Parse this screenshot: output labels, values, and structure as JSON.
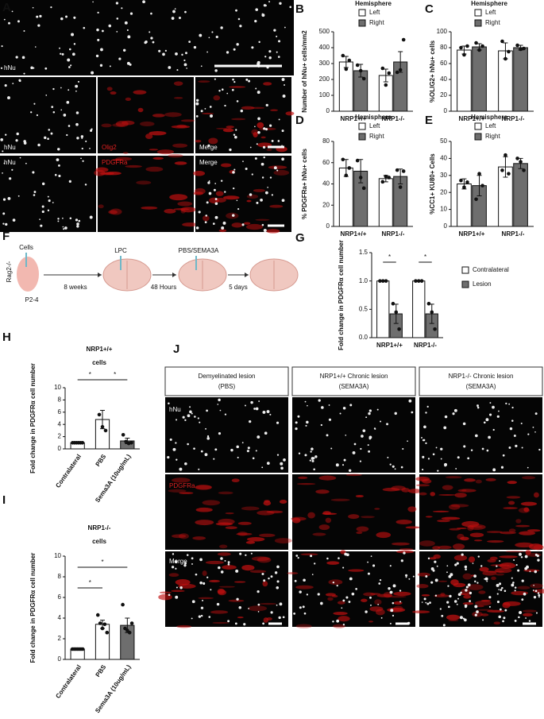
{
  "panel_labels": [
    "A",
    "B",
    "C",
    "D",
    "E",
    "F",
    "G",
    "H",
    "I",
    "J"
  ],
  "panel_a": {
    "labels": [
      "hNu",
      "hNu",
      "Olig2",
      "Merge",
      "hNu",
      "PDGFRa",
      "Merge"
    ]
  },
  "panel_f": {
    "labels": [
      "Cells",
      "Rag2-/-",
      "P2-4",
      "LPC",
      "8 weeks",
      "PBS/SEMA3A",
      "48 Hours",
      "5 days"
    ]
  },
  "panel_j": {
    "headers": [
      [
        "Demyelinated lesion",
        "(PBS)"
      ],
      [
        "NRP1+/+ Chronic lesion",
        "(SEMA3A)"
      ],
      [
        "NRP1-/- Chronic lesion",
        "(SEMA3A)"
      ]
    ],
    "row_labels": [
      "hNu",
      "PDGFRa",
      "Merge"
    ]
  },
  "chart_data": [
    {
      "type": "bar",
      "legend_title": "Hemisphere",
      "ylabel": "Number of hNu+ cells/mm2",
      "categories": [
        "NRP1+/+",
        "NRP1-/-"
      ],
      "series": [
        {
          "name": "Left",
          "color": "#ffffff",
          "values": [
            310,
            225
          ],
          "errors": [
            35,
            40
          ],
          "points": [
            [
              350,
              265,
              320
            ],
            [
              270,
              165,
              240
            ]
          ]
        },
        {
          "name": "Right",
          "color": "#6e6e6e",
          "values": [
            255,
            310
          ],
          "errors": [
            40,
            65
          ],
          "points": [
            [
              290,
              255,
              205
            ],
            [
              245,
              260,
              450
            ]
          ]
        }
      ],
      "ylim": [
        0,
        500
      ],
      "yticks": [
        0,
        100,
        200,
        300,
        400,
        500
      ]
    },
    {
      "type": "bar",
      "legend_title": "Hemisphere",
      "ylabel": "%OLIG2+ hNu+ cells",
      "categories": [
        "NRP1+/+",
        "NRP1-/-"
      ],
      "series": [
        {
          "name": "Left",
          "color": "#ffffff",
          "values": [
            77,
            76
          ],
          "errors": [
            5,
            10
          ],
          "points": [
            [
              80,
              71,
              82
            ],
            [
              88,
              66,
              75
            ]
          ]
        },
        {
          "name": "Right",
          "color": "#6e6e6e",
          "values": [
            81,
            80
          ],
          "errors": [
            4,
            3
          ],
          "points": [
            [
              86,
              77,
              82
            ],
            [
              83,
              78,
              79
            ]
          ]
        }
      ],
      "ylim": [
        0,
        100
      ],
      "yticks": [
        0,
        20,
        40,
        60,
        80,
        100
      ]
    },
    {
      "type": "bar",
      "legend_title": "Hemisphere",
      "ylabel": "% PDGFRa+ hNu+ cells",
      "categories": [
        "NRP1+/+",
        "NRP1-/-"
      ],
      "series": [
        {
          "name": "Left",
          "color": "#ffffff",
          "values": [
            55,
            45
          ],
          "errors": [
            8,
            3
          ],
          "points": [
            [
              63,
              48,
              55
            ],
            [
              42,
              47,
              46
            ]
          ]
        },
        {
          "name": "Right",
          "color": "#6e6e6e",
          "values": [
            52,
            47
          ],
          "errors": [
            11,
            7
          ],
          "points": [
            [
              62,
              46,
              36
            ],
            [
              53,
              37,
              52
            ]
          ]
        }
      ],
      "ylim": [
        0,
        80
      ],
      "yticks": [
        0,
        20,
        40,
        60,
        80
      ]
    },
    {
      "type": "bar",
      "legend_title": "Hemisphere",
      "ylabel": "%CC1+ KU80+ Cells",
      "categories": [
        "NRP1+/+",
        "NRP1-/-"
      ],
      "series": [
        {
          "name": "Left",
          "color": "#ffffff",
          "values": [
            25,
            35
          ],
          "errors": [
            3,
            6
          ],
          "points": [
            [
              27,
              23,
              26
            ],
            [
              33,
              42,
              31
            ]
          ]
        },
        {
          "name": "Right",
          "color": "#6e6e6e",
          "values": [
            24,
            37
          ],
          "errors": [
            6,
            3
          ],
          "points": [
            [
              16,
              31,
              24
            ],
            [
              40,
              38,
              33
            ]
          ]
        }
      ],
      "ylim": [
        0,
        50
      ],
      "yticks": [
        0,
        10,
        20,
        30,
        40,
        50
      ]
    },
    {
      "type": "bar",
      "ylabel": "Fold change in PDGFRα cell number",
      "categories": [
        "NRP1+/+",
        "NRP1-/-"
      ],
      "series": [
        {
          "name": "Contralateral",
          "color": "#ffffff",
          "values": [
            1.0,
            1.0
          ],
          "errors": [
            0,
            0
          ],
          "points": [
            [
              1.0,
              1.0,
              1.0
            ],
            [
              1.0,
              1.0,
              1.0
            ]
          ]
        },
        {
          "name": "Lesion",
          "color": "#6e6e6e",
          "values": [
            0.42,
            0.42
          ],
          "errors": [
            0.17,
            0.17
          ],
          "points": [
            [
              0.6,
              0.45,
              0.15
            ],
            [
              0.6,
              0.45,
              0.15
            ]
          ]
        }
      ],
      "ylim": [
        0,
        1.5
      ],
      "yticks": [
        {
          "value": 0,
          "label": "0.0"
        },
        {
          "value": 0.5,
          "label": "0.5"
        },
        {
          "value": 1,
          "label": "1.0"
        },
        {
          "value": 1.5,
          "label": "1.5"
        }
      ],
      "annotations": [
        "*",
        "*"
      ]
    },
    {
      "type": "bar",
      "title": "NRP1+/+",
      "subtitle": "cells",
      "ylabel": "Fold change in PDGFRα cell number",
      "categories": [
        "Contralateral",
        "PBS",
        "Sema3A (10ug/mL)"
      ],
      "series": [
        {
          "colors": [
            "#ffffff",
            "#ffffff",
            "#6e6e6e"
          ],
          "values": [
            1,
            4.8,
            1.3
          ],
          "errors": [
            0,
            1.5,
            0.45
          ],
          "points": [
            [
              1,
              1,
              1,
              1,
              1,
              1
            ],
            [
              5.6,
              3.6,
              3.0
            ],
            [
              2.3,
              1.2,
              0.9,
              1.0
            ]
          ]
        }
      ],
      "ylim": [
        0,
        10
      ],
      "yticks": [
        0,
        2,
        4,
        6,
        8,
        10
      ],
      "annotations": [
        "*",
        "*"
      ]
    },
    {
      "type": "bar",
      "title": "NRP1-/-",
      "subtitle": "cells",
      "ylabel": "Fold change in PDGFRα cell number",
      "categories": [
        "Contralateral",
        "PBS",
        "Sema3A (10ug/mL)"
      ],
      "series": [
        {
          "colors": [
            "#ffffff",
            "#ffffff",
            "#6e6e6e"
          ],
          "values": [
            1,
            3.4,
            3.3
          ],
          "errors": [
            0,
            0.4,
            0.7
          ],
          "points": [
            [
              1,
              1,
              1,
              1,
              1,
              1,
              1
            ],
            [
              4.3,
              3.5,
              3.0,
              3.4,
              2.6
            ],
            [
              5.3,
              3.0,
              2.8,
              2.6,
              3.5
            ]
          ]
        }
      ],
      "ylim": [
        0,
        10
      ],
      "yticks": [
        0,
        2,
        4,
        6,
        8,
        10
      ],
      "annotations": [
        "*",
        "*"
      ]
    }
  ]
}
